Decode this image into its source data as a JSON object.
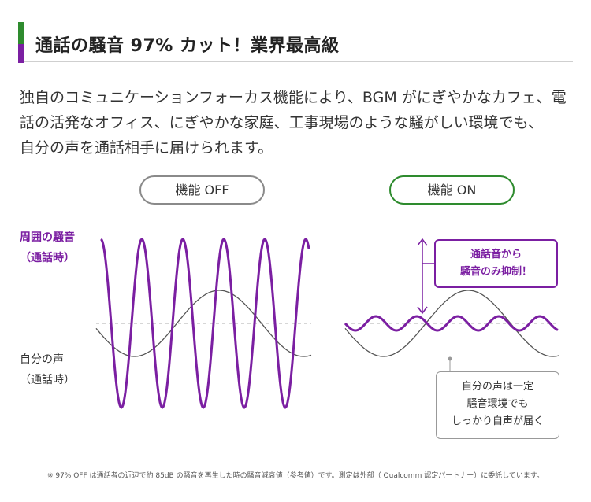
{
  "header": {
    "title": "通話の騒音 97% カット！業界最高級"
  },
  "description": [
    "独自のコミュニケーションフォーカス機能により、BGM がにぎやかなカフェ、電",
    "話の活発なオフィス、にぎやかな家庭、工事現場のような騒がしい環境でも、",
    "自分の声を通話相手に届けられます。"
  ],
  "panels": {
    "off": {
      "label": "機能 OFF"
    },
    "on": {
      "label": "機能 ON"
    }
  },
  "labels": {
    "noise": [
      "周囲の騒音",
      "（通話時）"
    ],
    "voice": [
      "自分の声",
      "（通話時）"
    ]
  },
  "callouts": {
    "noise_suppression": [
      "通話音から",
      "騒音のみ抑制！"
    ],
    "voice_delivered": [
      "自分の声は一定",
      "騒音環境でも",
      "しっかり自声が届く"
    ]
  },
  "footnote": "※ 97% OFF は通話者の近辺で約 85dB の騒音を再生した時の騒音減衰値（参考値）です。測定は外部（ Qualcomm 認定パートナー）に委託しています。",
  "colors": {
    "noise": "#7b1fa2",
    "voice": "#555555",
    "accent_green": "#2e8b2e",
    "baseline": "#c9c9c9"
  }
}
